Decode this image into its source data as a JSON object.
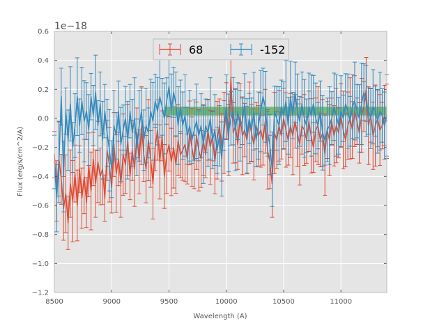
{
  "chart_data": {
    "type": "line",
    "xlabel": "Wavelength (A)",
    "ylabel": "Flux (erg/s/cm^2/A)",
    "offset_text": "1e−18",
    "xlim": [
      8500,
      11400
    ],
    "ylim": [
      -1.2,
      0.6
    ],
    "xticks": [
      8500,
      9000,
      9500,
      10000,
      10500,
      11000
    ],
    "yticks": [
      -1.2,
      -1.0,
      -0.8,
      -0.6,
      -0.4,
      -0.2,
      0.0,
      0.2,
      0.4,
      0.6
    ],
    "xtick_labels": [
      "8500",
      "9000",
      "9500",
      "10000",
      "10500",
      "11000"
    ],
    "ytick_labels": [
      "−1.2",
      "−1.0",
      "−0.8",
      "−0.6",
      "−0.4",
      "−0.2",
      "0.0",
      "0.2",
      "0.4",
      "0.6"
    ],
    "grid": true,
    "background": "#e5e5e5",
    "legend_position": "upper-center",
    "errorbar_style": true,
    "band": {
      "x": [
        9460,
        11400
      ],
      "y": [
        0.02,
        0.08
      ],
      "color": "#2ca02c"
    },
    "series": [
      {
        "name": "68",
        "color": "#e24a33",
        "x": [
          8500,
          8520,
          8540,
          8560,
          8580,
          8600,
          8620,
          8640,
          8660,
          8680,
          8700,
          8720,
          8740,
          8760,
          8780,
          8800,
          8820,
          8840,
          8860,
          8880,
          8900,
          8920,
          8940,
          8960,
          8980,
          9000,
          9020,
          9040,
          9060,
          9080,
          9100,
          9120,
          9140,
          9160,
          9180,
          9200,
          9220,
          9240,
          9260,
          9280,
          9300,
          9320,
          9340,
          9360,
          9380,
          9400,
          9420,
          9440,
          9460,
          9480,
          9500,
          9520,
          9540,
          9560,
          9580,
          9600,
          9620,
          9640,
          9660,
          9680,
          9700,
          9720,
          9740,
          9760,
          9780,
          9800,
          9820,
          9840,
          9860,
          9880,
          9900,
          9920,
          9940,
          9960,
          9980,
          10000,
          10020,
          10040,
          10060,
          10080,
          10100,
          10120,
          10140,
          10160,
          10180,
          10200,
          10220,
          10240,
          10260,
          10280,
          10300,
          10320,
          10340,
          10360,
          10380,
          10400,
          10420,
          10440,
          10460,
          10480,
          10500,
          10520,
          10540,
          10560,
          10580,
          10600,
          10620,
          10640,
          10660,
          10680,
          10700,
          10720,
          10740,
          10760,
          10780,
          10800,
          10820,
          10840,
          10860,
          10880,
          10900,
          10920,
          10940,
          10960,
          10980,
          11000,
          11020,
          11040,
          11060,
          11080,
          11100,
          11120,
          11140,
          11160,
          11180,
          11200,
          11220,
          11240,
          11260,
          11280,
          11300,
          11320,
          11340,
          11360,
          11380,
          11400
        ],
        "y": [
          -0.25,
          -0.5,
          -0.28,
          -0.42,
          -0.62,
          -0.52,
          -0.72,
          -0.45,
          -0.57,
          -0.38,
          -0.6,
          -0.35,
          -0.55,
          -0.4,
          -0.58,
          -0.32,
          -0.5,
          -0.28,
          -0.45,
          -0.3,
          -0.4,
          -0.35,
          -0.55,
          -0.22,
          -0.32,
          -0.48,
          -0.18,
          -0.38,
          -0.28,
          -0.45,
          -0.25,
          -0.32,
          -0.15,
          -0.4,
          -0.22,
          -0.35,
          -0.1,
          -0.3,
          -0.05,
          -0.25,
          -0.35,
          -0.15,
          -0.28,
          -0.45,
          -0.2,
          -0.08,
          -0.3,
          -0.12,
          -0.4,
          -0.25,
          -0.18,
          -0.3,
          -0.2,
          -0.32,
          -0.15,
          -0.25,
          -0.22,
          -0.18,
          -0.28,
          -0.1,
          -0.2,
          -0.3,
          -0.12,
          -0.22,
          -0.28,
          -0.15,
          -0.25,
          -0.08,
          -0.2,
          -0.12,
          -0.3,
          -0.15,
          -0.05,
          -0.2,
          -0.1,
          0.05,
          -0.15,
          0.28,
          -0.1,
          -0.05,
          -0.18,
          0.02,
          -0.12,
          -0.08,
          -0.15,
          -0.03,
          -0.1,
          -0.18,
          -0.05,
          -0.12,
          -0.08,
          -0.15,
          -0.02,
          -0.22,
          -0.3,
          -0.45,
          -0.1,
          -0.15,
          -0.05,
          -0.12,
          0.0,
          -0.08,
          -0.15,
          -0.05,
          -0.12,
          -0.02,
          -0.1,
          -0.18,
          -0.05,
          -0.08,
          -0.15,
          -0.02,
          -0.12,
          -0.2,
          -0.08,
          -0.05,
          -0.15,
          -0.1,
          -0.25,
          -0.08,
          -0.15,
          -0.02,
          -0.12,
          -0.05,
          -0.1,
          0.02,
          -0.08,
          -0.15,
          -0.05,
          0.0,
          -0.08,
          0.05,
          -0.02,
          -0.1,
          0.02,
          0.08,
          0.2,
          -0.05,
          0.02,
          -0.12,
          -0.05,
          0.0,
          -0.08,
          -0.05,
          0.02,
          -0.02
        ]
      },
      {
        "name": "-152",
        "color": "#348abd",
        "x": [
          8500,
          8520,
          8540,
          8560,
          8580,
          8600,
          8620,
          8640,
          8660,
          8680,
          8700,
          8720,
          8740,
          8760,
          8780,
          8800,
          8820,
          8840,
          8860,
          8880,
          8900,
          8920,
          8940,
          8960,
          8980,
          9000,
          9020,
          9040,
          9060,
          9080,
          9100,
          9120,
          9140,
          9160,
          9180,
          9200,
          9220,
          9240,
          9260,
          9280,
          9300,
          9320,
          9340,
          9360,
          9380,
          9400,
          9420,
          9440,
          9460,
          9480,
          9500,
          9520,
          9540,
          9560,
          9580,
          9600,
          9620,
          9640,
          9660,
          9680,
          9700,
          9720,
          9740,
          9760,
          9780,
          9800,
          9820,
          9840,
          9860,
          9880,
          9900,
          9920,
          9940,
          9960,
          9980,
          10000,
          10020,
          10040,
          10060,
          10080,
          10100,
          10120,
          10140,
          10160,
          10180,
          10200,
          10220,
          10240,
          10260,
          10280,
          10300,
          10320,
          10340,
          10360,
          10380,
          10400,
          10420,
          10440,
          10460,
          10480,
          10500,
          10520,
          10540,
          10560,
          10580,
          10600,
          10620,
          10640,
          10660,
          10680,
          10700,
          10720,
          10740,
          10760,
          10780,
          10800,
          10820,
          10840,
          10860,
          10880,
          10900,
          10920,
          10940,
          10960,
          10980,
          11000,
          11020,
          11040,
          11060,
          11080,
          11100,
          11120,
          11140,
          11160,
          11180,
          11200,
          11220,
          11240,
          11260,
          11280,
          11300,
          11320,
          11340,
          11360,
          11380,
          11400
        ],
        "y": [
          -0.3,
          -0.55,
          -0.3,
          0.15,
          -0.4,
          0.05,
          -0.15,
          0.1,
          -0.2,
          -0.05,
          0.15,
          -0.05,
          0.12,
          -0.02,
          0.05,
          -0.08,
          0.15,
          0.02,
          0.18,
          -0.05,
          0.1,
          -0.15,
          0.05,
          -0.1,
          -0.22,
          -0.35,
          -0.05,
          -0.12,
          0.05,
          -0.18,
          -0.08,
          0.0,
          -0.15,
          0.05,
          -0.1,
          0.0,
          -0.2,
          -0.05,
          0.05,
          -0.15,
          -0.05,
          -0.1,
          0.05,
          -0.02,
          0.12,
          0.05,
          0.15,
          0.08,
          0.0,
          0.12,
          0.22,
          0.05,
          0.18,
          0.1,
          -0.05,
          0.08,
          -0.05,
          0.02,
          -0.12,
          -0.05,
          -0.15,
          -0.08,
          -0.02,
          -0.12,
          -0.05,
          -0.18,
          -0.05,
          -0.1,
          0.0,
          -0.15,
          -0.08,
          -0.22,
          -0.12,
          -0.28,
          -0.05,
          0.08,
          -0.1,
          0.0,
          0.05,
          -0.08,
          0.05,
          -0.05,
          -0.02,
          0.1,
          -0.12,
          0.0,
          -0.08,
          0.05,
          -0.15,
          -0.05,
          0.05,
          0.15,
          0.08,
          -0.1,
          -0.18,
          -0.35,
          0.05,
          0.0,
          -0.05,
          0.08,
          0.02,
          0.12,
          -0.05,
          0.15,
          0.02,
          0.18,
          0.05,
          -0.02,
          0.1,
          0.0,
          -0.05,
          0.08,
          0.02,
          0.1,
          0.0,
          -0.05,
          0.05,
          -0.1,
          -0.15,
          -0.08,
          -0.05,
          0.0,
          0.08,
          0.02,
          -0.05,
          0.05,
          0.0,
          0.1,
          0.05,
          -0.02,
          0.08,
          0.12,
          0.05,
          0.0,
          0.1,
          0.18,
          0.12,
          0.05,
          0.0,
          0.08,
          0.05,
          -0.02,
          0.05,
          0.02,
          -0.05,
          0.02
        ]
      }
    ]
  }
}
